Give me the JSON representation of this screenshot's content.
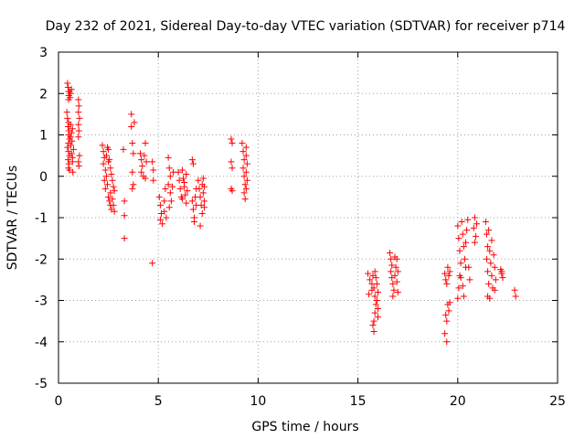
{
  "chart_data": {
    "type": "scatter",
    "title": "Day 232 of 2021, Sidereal Day-to-day VTEC variation (SDTVAR) for receiver p714",
    "xlabel": "GPS time / hours",
    "ylabel": "SDTVAR / TECUs",
    "xlim": [
      0,
      25
    ],
    "ylim": [
      -5,
      3
    ],
    "xticks": [
      0,
      5,
      10,
      15,
      20,
      25
    ],
    "yticks": [
      -5,
      -4,
      -3,
      -2,
      -1,
      0,
      1,
      2,
      3
    ],
    "xtick_labels": [
      "0",
      "5",
      "10",
      "15",
      "20",
      "25"
    ],
    "ytick_labels": [
      "-5",
      "-4",
      "-3",
      "-2",
      "-1",
      "0",
      "1",
      "2",
      "3"
    ],
    "grid": true,
    "marker": "plus",
    "color": "#ff0000",
    "series": [
      {
        "name": "SDTVAR",
        "points": [
          [
            0.45,
            2.25
          ],
          [
            0.48,
            2.15
          ],
          [
            0.5,
            2.05
          ],
          [
            0.52,
            1.95
          ],
          [
            0.5,
            1.85
          ],
          [
            0.55,
            2.05
          ],
          [
            0.6,
            2.0
          ],
          [
            0.65,
            2.1
          ],
          [
            0.58,
            1.9
          ],
          [
            0.42,
            1.55
          ],
          [
            0.45,
            1.4
          ],
          [
            0.5,
            1.3
          ],
          [
            0.48,
            1.2
          ],
          [
            0.52,
            1.1
          ],
          [
            0.5,
            1.0
          ],
          [
            0.55,
            0.9
          ],
          [
            0.5,
            0.8
          ],
          [
            0.45,
            0.7
          ],
          [
            0.5,
            0.6
          ],
          [
            0.55,
            0.5
          ],
          [
            0.48,
            0.4
          ],
          [
            0.52,
            0.3
          ],
          [
            0.5,
            0.2
          ],
          [
            0.55,
            0.15
          ],
          [
            0.6,
            0.95
          ],
          [
            0.62,
            0.75
          ],
          [
            0.65,
            0.55
          ],
          [
            0.7,
            0.35
          ],
          [
            0.72,
            0.1
          ],
          [
            0.6,
            1.25
          ],
          [
            0.65,
            1.05
          ],
          [
            0.68,
            0.85
          ],
          [
            0.7,
            1.15
          ],
          [
            0.75,
            0.65
          ],
          [
            0.7,
            0.45
          ],
          [
            1.0,
            1.85
          ],
          [
            1.02,
            1.7
          ],
          [
            1.0,
            1.55
          ],
          [
            1.05,
            1.4
          ],
          [
            1.0,
            1.25
          ],
          [
            1.02,
            1.1
          ],
          [
            1.0,
            0.95
          ],
          [
            1.05,
            0.5
          ],
          [
            1.0,
            0.35
          ],
          [
            1.02,
            0.25
          ],
          [
            2.2,
            0.75
          ],
          [
            2.25,
            0.6
          ],
          [
            2.3,
            0.45
          ],
          [
            2.25,
            0.3
          ],
          [
            2.35,
            0.15
          ],
          [
            2.4,
            0.0
          ],
          [
            2.3,
            -0.1
          ],
          [
            2.45,
            -0.2
          ],
          [
            2.5,
            0.65
          ],
          [
            2.55,
            0.4
          ],
          [
            2.6,
            0.2
          ],
          [
            2.65,
            0.05
          ],
          [
            2.7,
            -0.1
          ],
          [
            2.75,
            -0.25
          ],
          [
            2.5,
            -0.5
          ],
          [
            2.55,
            -0.6
          ],
          [
            2.6,
            -0.7
          ],
          [
            2.65,
            -0.8
          ],
          [
            2.7,
            -0.55
          ],
          [
            2.75,
            -0.7
          ],
          [
            2.8,
            -0.85
          ],
          [
            2.8,
            -0.35
          ],
          [
            2.5,
            0.35
          ],
          [
            2.4,
            0.5
          ],
          [
            2.35,
            -0.3
          ],
          [
            2.45,
            0.7
          ],
          [
            2.6,
            -0.4
          ],
          [
            3.25,
            0.65
          ],
          [
            3.3,
            -0.6
          ],
          [
            3.3,
            -0.95
          ],
          [
            3.3,
            -1.5
          ],
          [
            3.65,
            1.5
          ],
          [
            3.65,
            1.2
          ],
          [
            3.7,
            0.8
          ],
          [
            3.75,
            0.55
          ],
          [
            3.7,
            0.1
          ],
          [
            3.75,
            -0.2
          ],
          [
            3.7,
            -0.3
          ],
          [
            3.8,
            1.3
          ],
          [
            4.1,
            0.55
          ],
          [
            4.15,
            0.4
          ],
          [
            4.2,
            0.25
          ],
          [
            4.15,
            0.1
          ],
          [
            4.25,
            0.0
          ],
          [
            4.3,
            0.5
          ],
          [
            4.35,
            0.8
          ],
          [
            4.4,
            0.35
          ],
          [
            4.35,
            -0.05
          ],
          [
            4.7,
            0.35
          ],
          [
            4.75,
            0.15
          ],
          [
            4.75,
            -0.1
          ],
          [
            4.7,
            -2.1
          ],
          [
            5.05,
            -0.5
          ],
          [
            5.1,
            -0.7
          ],
          [
            5.15,
            -0.9
          ],
          [
            5.1,
            -1.05
          ],
          [
            5.2,
            -1.15
          ],
          [
            5.3,
            -0.6
          ],
          [
            5.3,
            -0.85
          ],
          [
            5.35,
            -0.3
          ],
          [
            5.4,
            -1.0
          ],
          [
            5.5,
            0.45
          ],
          [
            5.55,
            0.2
          ],
          [
            5.6,
            0.0
          ],
          [
            5.5,
            -0.2
          ],
          [
            5.6,
            -0.4
          ],
          [
            5.65,
            -0.6
          ],
          [
            5.55,
            -0.75
          ],
          [
            5.7,
            -0.25
          ],
          [
            5.75,
            0.1
          ],
          [
            6.0,
            0.1
          ],
          [
            6.05,
            -0.1
          ],
          [
            6.1,
            -0.3
          ],
          [
            6.15,
            -0.5
          ],
          [
            6.2,
            0.15
          ],
          [
            6.25,
            -0.05
          ],
          [
            6.3,
            -0.25
          ],
          [
            6.35,
            -0.45
          ],
          [
            6.4,
            -0.65
          ],
          [
            6.3,
            -0.15
          ],
          [
            6.4,
            0.05
          ],
          [
            6.45,
            -0.35
          ],
          [
            6.2,
            -0.55
          ],
          [
            6.7,
            0.4
          ],
          [
            6.75,
            0.3
          ],
          [
            6.7,
            -0.6
          ],
          [
            6.75,
            -0.8
          ],
          [
            6.8,
            -1.0
          ],
          [
            6.85,
            -0.5
          ],
          [
            6.9,
            -0.3
          ],
          [
            6.8,
            -1.1
          ],
          [
            6.9,
            -0.7
          ],
          [
            7.0,
            -0.1
          ],
          [
            7.05,
            -0.3
          ],
          [
            7.1,
            -0.5
          ],
          [
            7.15,
            -0.7
          ],
          [
            7.2,
            -0.2
          ],
          [
            7.25,
            -0.4
          ],
          [
            7.3,
            -0.6
          ],
          [
            7.2,
            -0.9
          ],
          [
            7.1,
            -1.2
          ],
          [
            7.25,
            -0.05
          ],
          [
            7.3,
            -0.25
          ],
          [
            7.3,
            -0.75
          ],
          [
            8.65,
            0.9
          ],
          [
            8.7,
            0.8
          ],
          [
            8.65,
            0.35
          ],
          [
            8.7,
            0.2
          ],
          [
            8.65,
            -0.3
          ],
          [
            8.7,
            -0.35
          ],
          [
            9.2,
            0.8
          ],
          [
            9.25,
            0.6
          ],
          [
            9.3,
            0.4
          ],
          [
            9.25,
            0.2
          ],
          [
            9.3,
            0.0
          ],
          [
            9.35,
            -0.2
          ],
          [
            9.3,
            -0.4
          ],
          [
            9.35,
            -0.55
          ],
          [
            9.4,
            0.7
          ],
          [
            9.4,
            0.5
          ],
          [
            9.45,
            0.3
          ],
          [
            9.4,
            0.1
          ],
          [
            9.45,
            -0.1
          ],
          [
            9.4,
            -0.3
          ],
          [
            15.5,
            -2.35
          ],
          [
            15.6,
            -2.5
          ],
          [
            15.55,
            -2.85
          ],
          [
            15.7,
            -2.6
          ],
          [
            15.75,
            -2.4
          ],
          [
            15.8,
            -2.7
          ],
          [
            15.85,
            -2.9
          ],
          [
            15.9,
            -3.1
          ],
          [
            15.85,
            -3.3
          ],
          [
            15.8,
            -3.5
          ],
          [
            15.8,
            -3.75
          ],
          [
            15.9,
            -2.45
          ],
          [
            15.95,
            -2.6
          ],
          [
            16.0,
            -2.8
          ],
          [
            15.95,
            -3.0
          ],
          [
            16.0,
            -3.2
          ],
          [
            16.0,
            -3.4
          ],
          [
            15.7,
            -2.75
          ],
          [
            15.75,
            -3.6
          ],
          [
            15.85,
            -2.3
          ],
          [
            16.6,
            -1.85
          ],
          [
            16.65,
            -2.0
          ],
          [
            16.7,
            -2.15
          ],
          [
            16.65,
            -2.3
          ],
          [
            16.7,
            -2.45
          ],
          [
            16.75,
            -2.6
          ],
          [
            16.8,
            -2.75
          ],
          [
            16.85,
            -2.4
          ],
          [
            16.9,
            -2.2
          ],
          [
            16.95,
            -2.0
          ],
          [
            17.0,
            -2.3
          ],
          [
            16.95,
            -2.55
          ],
          [
            17.0,
            -2.8
          ],
          [
            16.85,
            -1.95
          ],
          [
            16.75,
            -2.9
          ],
          [
            19.35,
            -2.35
          ],
          [
            19.4,
            -2.5
          ],
          [
            19.45,
            -2.6
          ],
          [
            19.4,
            -3.35
          ],
          [
            19.45,
            -3.5
          ],
          [
            19.35,
            -3.8
          ],
          [
            19.45,
            -4.0
          ],
          [
            19.5,
            -3.1
          ],
          [
            19.55,
            -3.25
          ],
          [
            19.5,
            -2.2
          ],
          [
            19.55,
            -2.4
          ],
          [
            19.6,
            -3.05
          ],
          [
            19.6,
            -2.3
          ],
          [
            20.0,
            -1.2
          ],
          [
            20.05,
            -1.5
          ],
          [
            20.1,
            -1.8
          ],
          [
            20.15,
            -2.1
          ],
          [
            20.1,
            -2.4
          ],
          [
            20.05,
            -2.7
          ],
          [
            20.0,
            -2.95
          ],
          [
            20.2,
            -1.1
          ],
          [
            20.25,
            -1.4
          ],
          [
            20.3,
            -1.7
          ],
          [
            20.35,
            -2.0
          ],
          [
            20.4,
            -1.6
          ],
          [
            20.45,
            -1.3
          ],
          [
            20.5,
            -1.05
          ],
          [
            20.55,
            -2.2
          ],
          [
            20.6,
            -2.5
          ],
          [
            20.3,
            -2.9
          ],
          [
            20.25,
            -2.65
          ],
          [
            20.15,
            -2.45
          ],
          [
            20.4,
            -2.2
          ],
          [
            20.8,
            -1.25
          ],
          [
            20.85,
            -1.0
          ],
          [
            20.9,
            -1.45
          ],
          [
            20.85,
            -1.6
          ],
          [
            20.95,
            -1.15
          ],
          [
            21.4,
            -1.1
          ],
          [
            21.45,
            -1.4
          ],
          [
            21.5,
            -1.7
          ],
          [
            21.45,
            -2.0
          ],
          [
            21.5,
            -2.3
          ],
          [
            21.55,
            -2.6
          ],
          [
            21.5,
            -2.9
          ],
          [
            21.6,
            -1.8
          ],
          [
            21.65,
            -2.1
          ],
          [
            21.7,
            -2.4
          ],
          [
            21.75,
            -2.7
          ],
          [
            21.8,
            -1.9
          ],
          [
            21.85,
            -2.2
          ],
          [
            21.9,
            -2.5
          ],
          [
            21.85,
            -2.75
          ],
          [
            21.6,
            -2.95
          ],
          [
            21.7,
            -1.55
          ],
          [
            21.55,
            -1.3
          ],
          [
            22.15,
            -2.25
          ],
          [
            22.2,
            -2.35
          ],
          [
            22.25,
            -2.45
          ],
          [
            22.2,
            -2.3
          ],
          [
            22.85,
            -2.75
          ],
          [
            22.9,
            -2.9
          ]
        ]
      }
    ]
  }
}
